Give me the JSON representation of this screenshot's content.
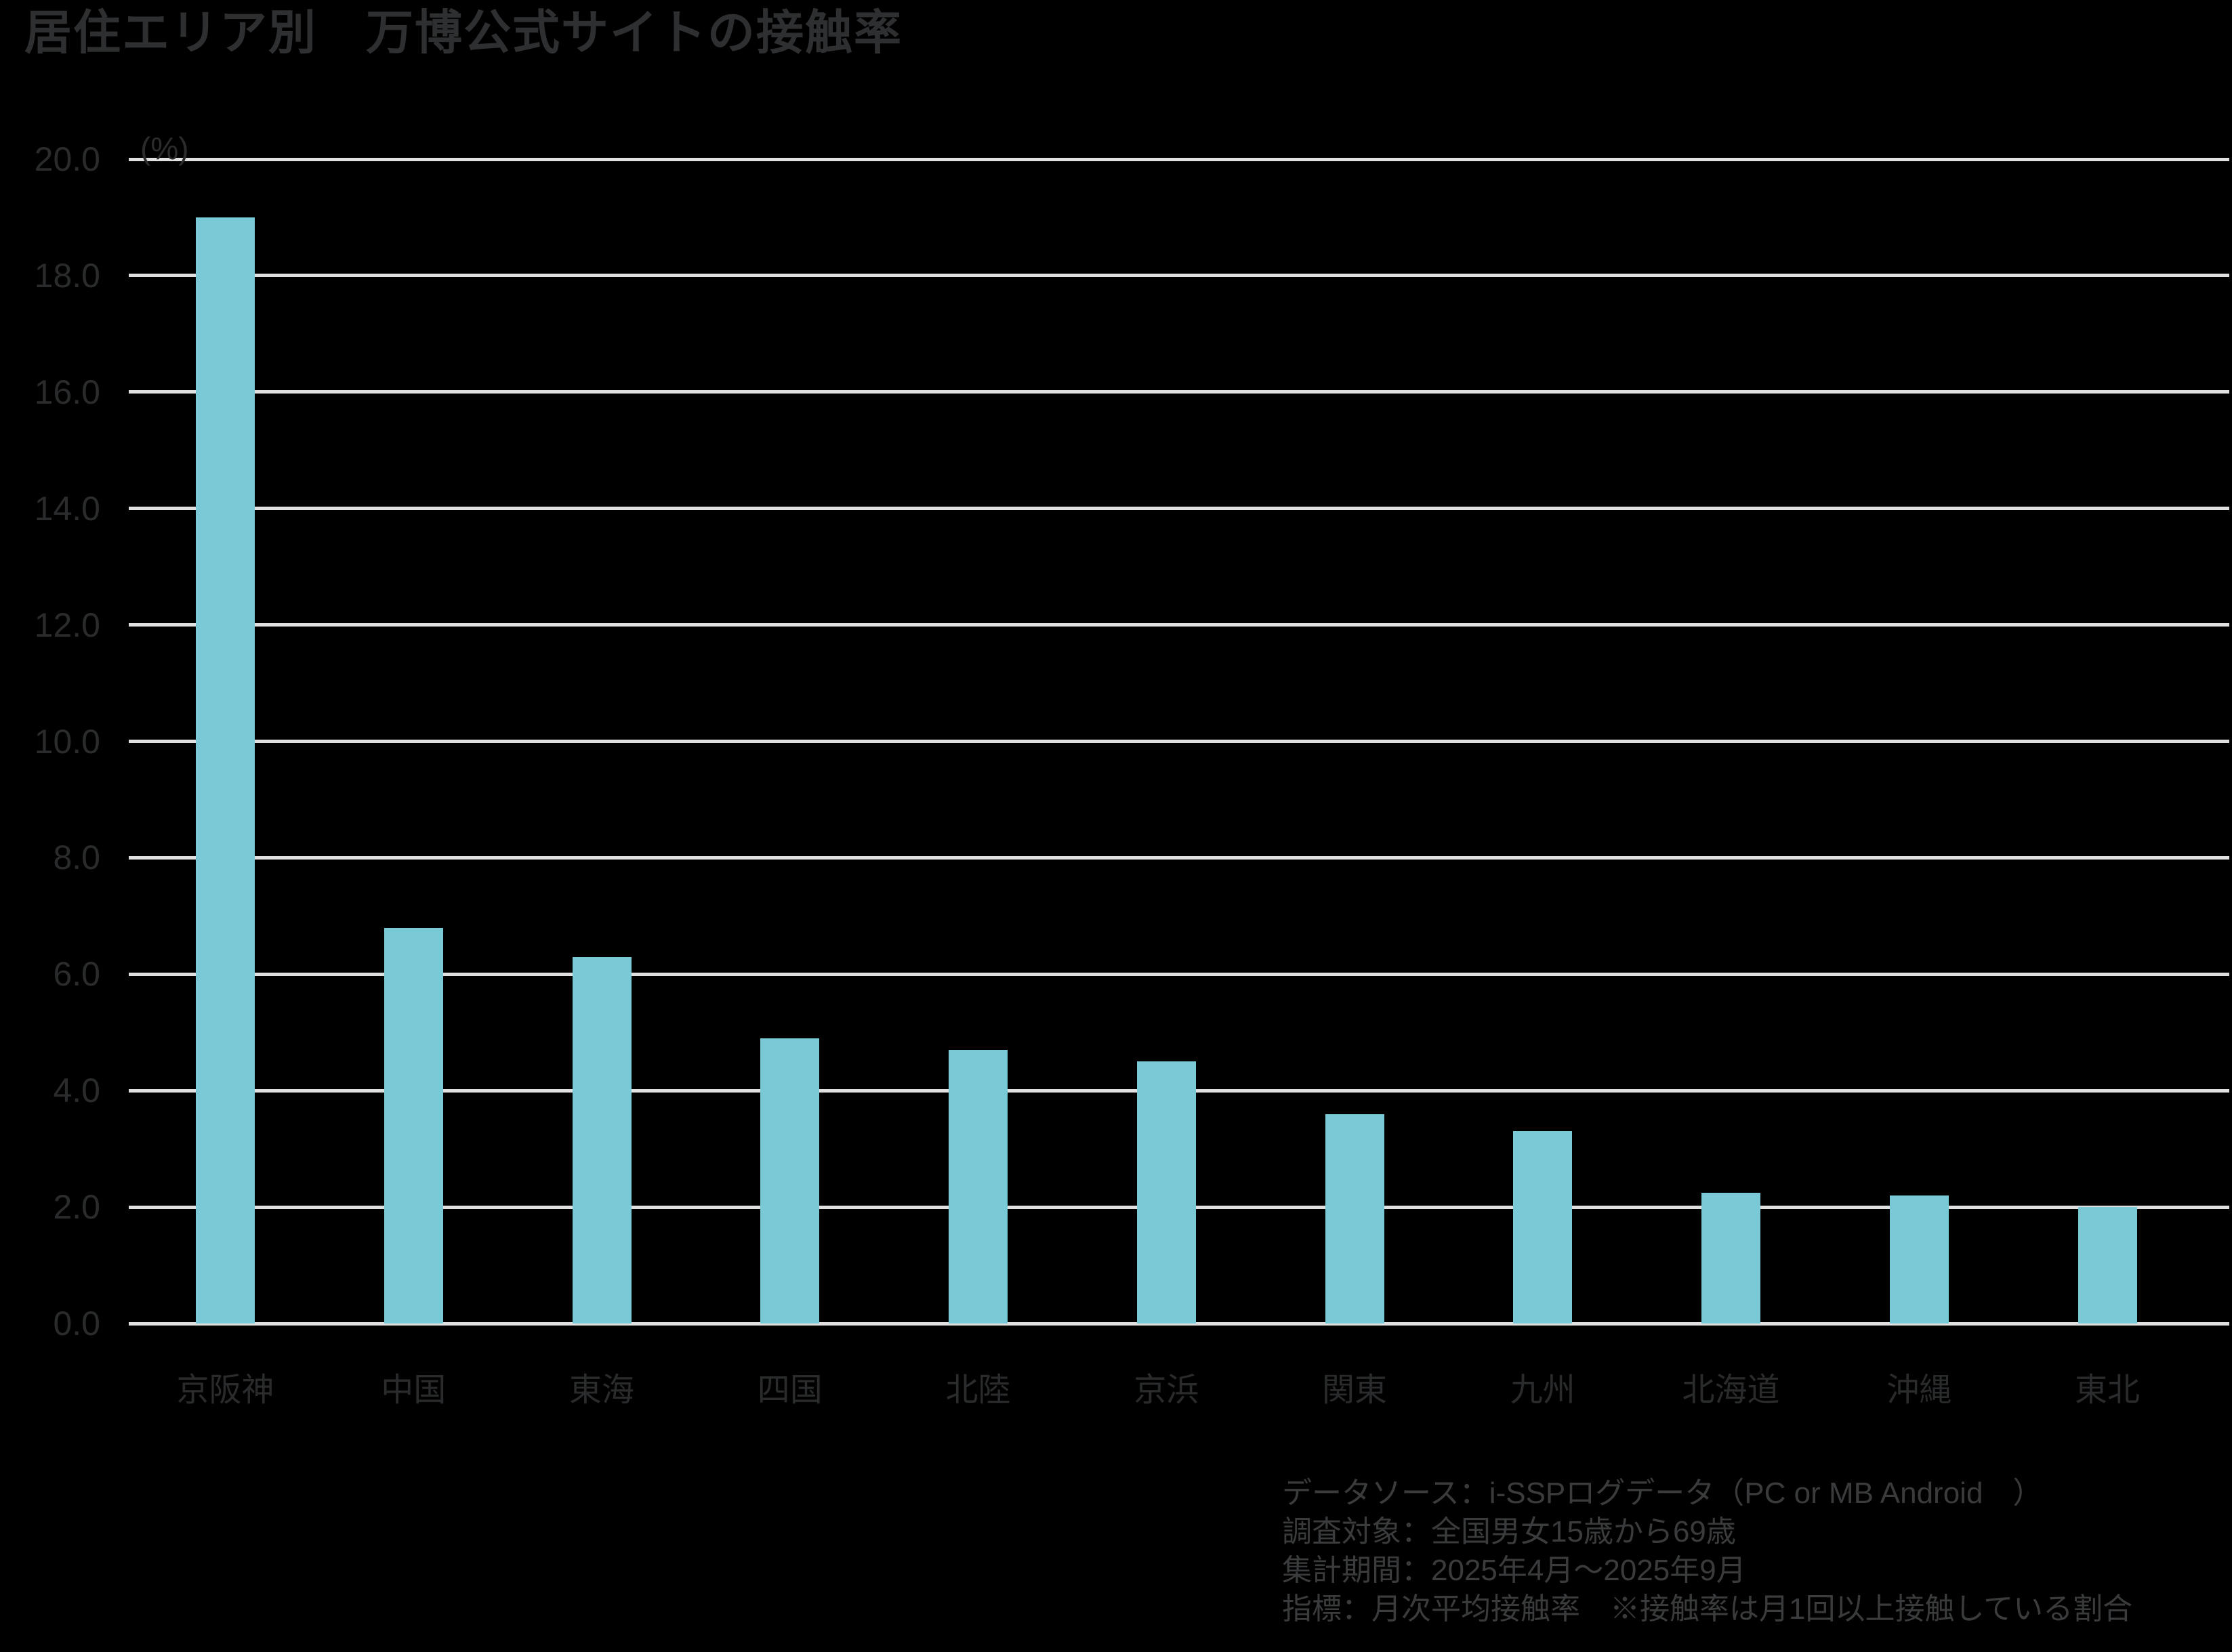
{
  "title": "居住エリア別　万博公式サイトの接触率",
  "chart_data": {
    "type": "bar",
    "title": "居住エリア別　万博公式サイトの接触率",
    "categories": [
      "京阪神",
      "中国",
      "東海",
      "四国",
      "北陸",
      "京浜",
      "関東",
      "九州",
      "北海道",
      "沖縄",
      "東北"
    ],
    "values": [
      19.0,
      6.8,
      6.3,
      4.9,
      4.7,
      4.5,
      3.6,
      3.3,
      2.25,
      2.2,
      2.0
    ],
    "unit_label": "(%)",
    "xlabel": "",
    "ylabel": "",
    "ylim": [
      0,
      20
    ],
    "ytick_step": 2.0,
    "ytick_labels": [
      "0.0",
      "2.0",
      "4.0",
      "6.0",
      "8.0",
      "10.0",
      "12.0",
      "14.0",
      "16.0",
      "18.0",
      "20.0"
    ],
    "grid": true,
    "legend": "none",
    "bar_color": "#79c9d6",
    "gridline_color": "#e0e0e0",
    "background_color": "#000000",
    "title_color": "#2e2f31",
    "axis_text_color": "#2a2b2c",
    "footnote_color": "#3a3b3c"
  },
  "footnotes": {
    "lines": [
      "データソース：i-SSPログデータ（PC or MB Android　）",
      "調査対象：全国男女15歳から69歳",
      "集計期間：2025年4月～2025年9月",
      "指標：月次平均接触率　※接触率は月1回以上接触している割合"
    ]
  }
}
